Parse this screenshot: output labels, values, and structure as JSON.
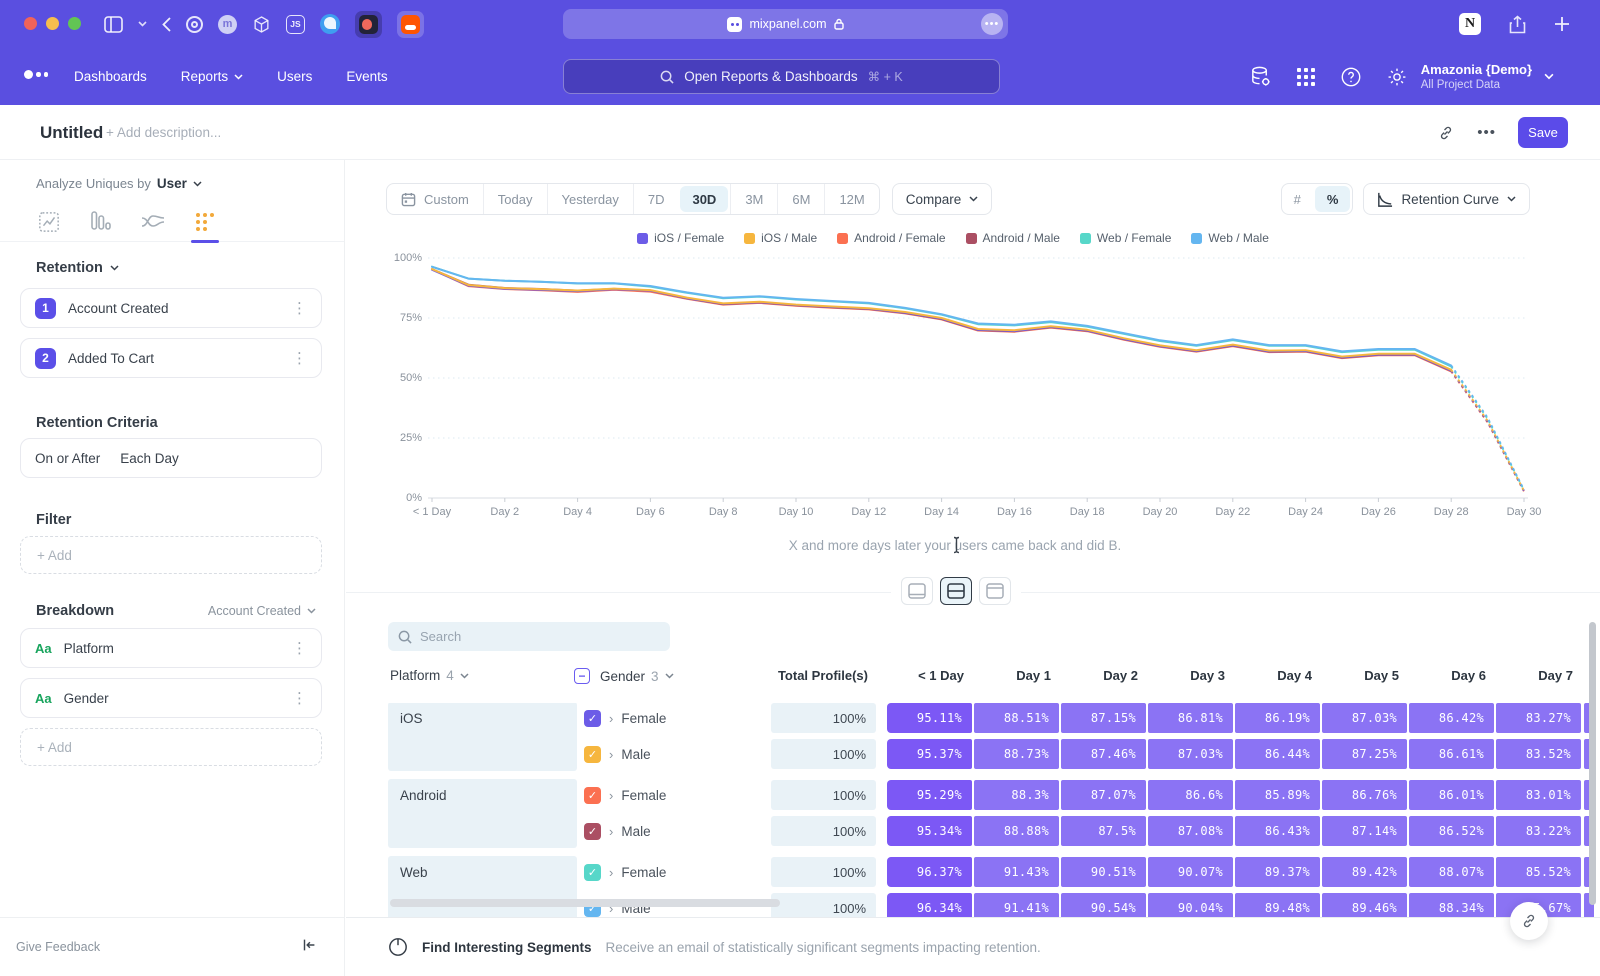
{
  "browser": {
    "url": "mixpanel.com",
    "more": "•••"
  },
  "nav": {
    "links": [
      "Dashboards",
      "Reports",
      "Users",
      "Events"
    ],
    "search_placeholder": "Open Reports & Dashboards",
    "search_shortcut": "⌘ + K",
    "project_name": "Amazonia {Demo}",
    "project_sub": "All Project Data"
  },
  "title_bar": {
    "title": "Untitled",
    "description_placeholder": "+ Add description...",
    "save_label": "Save"
  },
  "sidebar": {
    "analyze_label": "Analyze Uniques by",
    "analyze_value": "User",
    "section_retention": "Retention",
    "steps": [
      {
        "num": "1",
        "label": "Account Created"
      },
      {
        "num": "2",
        "label": "Added To Cart"
      }
    ],
    "criteria_label": "Retention Criteria",
    "criteria_left": "On or After",
    "criteria_right": "Each Day",
    "filter_label": "Filter",
    "add_label": "+ Add",
    "breakdown_label": "Breakdown",
    "breakdown_value": "Account Created",
    "breakdowns": [
      {
        "type": "Aa",
        "label": "Platform"
      },
      {
        "type": "Aa",
        "label": "Gender"
      }
    ],
    "feedback_label": "Give Feedback"
  },
  "controls": {
    "ranges": [
      "Custom",
      "Today",
      "Yesterday",
      "7D",
      "30D",
      "3M",
      "6M",
      "12M"
    ],
    "selected_range": "30D",
    "compare_label": "Compare",
    "number_toggle": [
      "#",
      "%"
    ],
    "number_selected": "%",
    "view_label": "Retention Curve"
  },
  "chart_data": {
    "type": "line",
    "x_count": 31,
    "xtick_positions": [
      0,
      2,
      4,
      6,
      8,
      10,
      12,
      14,
      16,
      18,
      20,
      22,
      24,
      26,
      28,
      30
    ],
    "xtick_labels": [
      "< 1 Day",
      "Day 2",
      "Day 4",
      "Day 6",
      "Day 8",
      "Day 10",
      "Day 12",
      "Day 14",
      "Day 16",
      "Day 18",
      "Day 20",
      "Day 22",
      "Day 24",
      "Day 26",
      "Day 28",
      "Day 30"
    ],
    "ytick_labels": [
      "0%",
      "25%",
      "50%",
      "75%",
      "100%"
    ],
    "ylim": [
      0,
      100
    ],
    "dashed_from_index": 28,
    "caption": "X and more days later your users came back and did B.",
    "series": [
      {
        "name": "iOS / Female",
        "color": "#6c5ce7",
        "values": [
          95.11,
          88.51,
          87.15,
          86.81,
          86.19,
          87.03,
          86.42,
          83.27,
          80.9,
          81.6,
          80.4,
          79.6,
          78.9,
          77.2,
          74.7,
          70.1,
          69.6,
          71.3,
          69.8,
          66.3,
          63.3,
          61.3,
          63.6,
          61.1,
          61.3,
          58.6,
          59.8,
          59.8,
          53.1,
          31.9,
          2.9
        ]
      },
      {
        "name": "iOS / Male",
        "color": "#f6b63e",
        "values": [
          95.37,
          88.73,
          87.46,
          87.03,
          86.44,
          87.25,
          86.61,
          83.52,
          81.1,
          81.8,
          80.6,
          79.8,
          79.1,
          77.5,
          75.0,
          70.4,
          69.9,
          71.6,
          70.1,
          66.6,
          63.6,
          61.6,
          63.9,
          61.4,
          61.6,
          58.9,
          60.1,
          60.1,
          53.4,
          32.2,
          3.0
        ]
      },
      {
        "name": "Android / Female",
        "color": "#fb7051",
        "values": [
          95.29,
          88.3,
          87.07,
          86.6,
          85.89,
          86.76,
          86.01,
          83.01,
          80.6,
          81.3,
          80.1,
          79.3,
          78.6,
          76.9,
          74.4,
          69.8,
          69.3,
          71.0,
          69.5,
          66.0,
          63.0,
          61.0,
          63.3,
          60.8,
          61.0,
          58.3,
          59.5,
          59.5,
          52.7,
          31.5,
          2.7
        ]
      },
      {
        "name": "Android / Male",
        "color": "#ab4f63",
        "values": [
          95.34,
          88.88,
          87.5,
          87.08,
          86.43,
          87.14,
          86.52,
          83.22,
          80.8,
          81.5,
          80.3,
          79.5,
          78.8,
          77.1,
          74.6,
          70.0,
          69.5,
          71.2,
          69.7,
          66.2,
          63.2,
          61.2,
          63.5,
          61.0,
          61.2,
          58.5,
          59.7,
          59.7,
          53.0,
          31.7,
          2.8
        ]
      },
      {
        "name": "Web / Female",
        "color": "#57d7c9",
        "values": [
          96.37,
          91.43,
          90.51,
          90.07,
          89.37,
          89.42,
          88.07,
          85.52,
          83.2,
          83.9,
          82.7,
          81.9,
          81.1,
          79.0,
          76.4,
          72.4,
          71.9,
          73.3,
          71.4,
          68.4,
          65.4,
          63.4,
          65.8,
          63.4,
          63.4,
          60.8,
          61.8,
          61.8,
          54.8,
          33.0,
          3.2
        ]
      },
      {
        "name": "Web / Male",
        "color": "#64b6f0",
        "values": [
          96.34,
          91.41,
          90.54,
          90.04,
          89.48,
          89.46,
          88.34,
          85.67,
          83.4,
          84.1,
          82.9,
          82.1,
          81.3,
          79.2,
          76.6,
          72.7,
          72.2,
          73.6,
          71.7,
          68.7,
          65.7,
          63.7,
          66.1,
          63.7,
          63.7,
          61.1,
          62.1,
          62.1,
          55.2,
          33.5,
          3.4
        ]
      }
    ]
  },
  "table": {
    "search_placeholder": "Search",
    "platform_header": "Platform",
    "platform_count": "4",
    "gender_header": "Gender",
    "gender_count": "3",
    "columns": [
      "Total Profile(s)",
      "< 1 Day",
      "Day 1",
      "Day 2",
      "Day 3",
      "Day 4",
      "Day 5",
      "Day 6",
      "Day 7"
    ],
    "groups": [
      {
        "platform": "iOS",
        "rows": [
          {
            "gender": "Female",
            "color": "#6c5ce7",
            "total": "100%",
            "cells": [
              "95.11%",
              "88.51%",
              "87.15%",
              "86.81%",
              "86.19%",
              "87.03%",
              "86.42%",
              "83.27%"
            ]
          },
          {
            "gender": "Male",
            "color": "#f6b63e",
            "total": "100%",
            "cells": [
              "95.37%",
              "88.73%",
              "87.46%",
              "87.03%",
              "86.44%",
              "87.25%",
              "86.61%",
              "83.52%"
            ]
          }
        ]
      },
      {
        "platform": "Android",
        "rows": [
          {
            "gender": "Female",
            "color": "#fb7051",
            "total": "100%",
            "cells": [
              "95.29%",
              "88.3%",
              "87.07%",
              "86.6%",
              "85.89%",
              "86.76%",
              "86.01%",
              "83.01%"
            ]
          },
          {
            "gender": "Male",
            "color": "#ab4f63",
            "total": "100%",
            "cells": [
              "95.34%",
              "88.88%",
              "87.5%",
              "87.08%",
              "86.43%",
              "87.14%",
              "86.52%",
              "83.22%"
            ]
          }
        ]
      },
      {
        "platform": "Web",
        "rows": [
          {
            "gender": "Female",
            "color": "#57d7c9",
            "total": "100%",
            "cells": [
              "96.37%",
              "91.43%",
              "90.51%",
              "90.07%",
              "89.37%",
              "89.42%",
              "88.07%",
              "85.52%"
            ]
          },
          {
            "gender": "Male",
            "color": "#64b6f0",
            "total": "100%",
            "cells": [
              "96.34%",
              "91.41%",
              "90.54%",
              "90.04%",
              "89.48%",
              "89.46%",
              "88.34%",
              "85.67%"
            ]
          }
        ]
      }
    ]
  },
  "bottom_bar": {
    "title": "Find Interesting Segments",
    "subtitle": "Receive an email of statistically significant segments impacting retention."
  }
}
